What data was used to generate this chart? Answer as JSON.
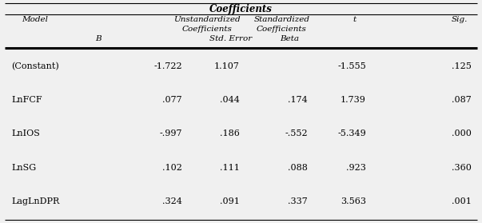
{
  "title": "Coefficients",
  "rows": [
    [
      "(Constant)",
      "-1.722",
      "1.107",
      "",
      "-1.555",
      ".125"
    ],
    [
      "LnFCF",
      ".077",
      ".044",
      ".174",
      "1.739",
      ".087"
    ],
    [
      "LnIOS",
      "-.997",
      ".186",
      "-.552",
      "-5.349",
      ".000"
    ],
    [
      "LnSG",
      ".102",
      ".111",
      ".088",
      ".923",
      ".360"
    ],
    [
      "LagLnDPR",
      ".324",
      ".091",
      ".337",
      "3.563",
      ".001"
    ]
  ],
  "bg_color": "#f0f0f0",
  "text_color": "#000000",
  "border_color": "#000000",
  "fig_width": 6.03,
  "fig_height": 2.79,
  "dpi": 100
}
